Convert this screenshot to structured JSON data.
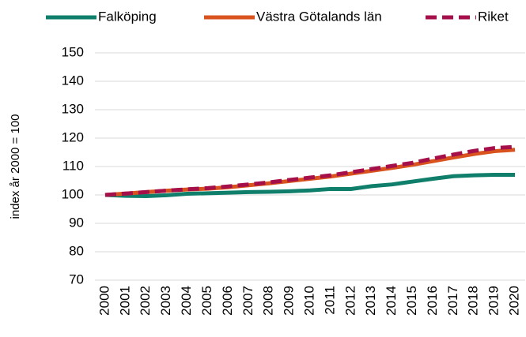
{
  "chart_data": {
    "type": "line",
    "y_label": "index år 2000 = 100",
    "categories": [
      "2000",
      "2001",
      "2002",
      "2003",
      "2004",
      "2005",
      "2006",
      "2007",
      "2008",
      "2009",
      "2010",
      "2011",
      "2012",
      "2013",
      "2014",
      "2015",
      "2016",
      "2017",
      "2018",
      "2019",
      "2020"
    ],
    "series": [
      {
        "name": "Falköping",
        "color": "#0f7f6b",
        "dash": false,
        "values": [
          100,
          99.7,
          99.6,
          99.9,
          100.4,
          100.6,
          100.8,
          101.0,
          101.1,
          101.3,
          101.6,
          102.1,
          102.1,
          103.1,
          103.7,
          104.7,
          105.7,
          106.6,
          106.9,
          107.1,
          107.1
        ]
      },
      {
        "name": "Västra Götalands län",
        "color": "#d9531e",
        "dash": false,
        "values": [
          100,
          100.5,
          101.0,
          101.5,
          101.9,
          102.2,
          102.7,
          103.4,
          104.1,
          104.9,
          105.7,
          106.5,
          107.5,
          108.5,
          109.5,
          110.6,
          111.9,
          113.2,
          114.4,
          115.4,
          115.9
        ]
      },
      {
        "name": "Riket",
        "color": "#a50f4a",
        "dash": true,
        "values": [
          100,
          100.5,
          101.0,
          101.5,
          102.0,
          102.4,
          103.0,
          103.7,
          104.4,
          105.3,
          106.1,
          106.9,
          108.0,
          109.1,
          110.2,
          111.3,
          112.8,
          114.2,
          115.5,
          116.5,
          116.9
        ]
      }
    ],
    "ylim": [
      70,
      150
    ],
    "yticks": [
      70,
      80,
      90,
      100,
      110,
      120,
      130,
      140,
      150
    ],
    "grid": true,
    "legend": "top"
  }
}
